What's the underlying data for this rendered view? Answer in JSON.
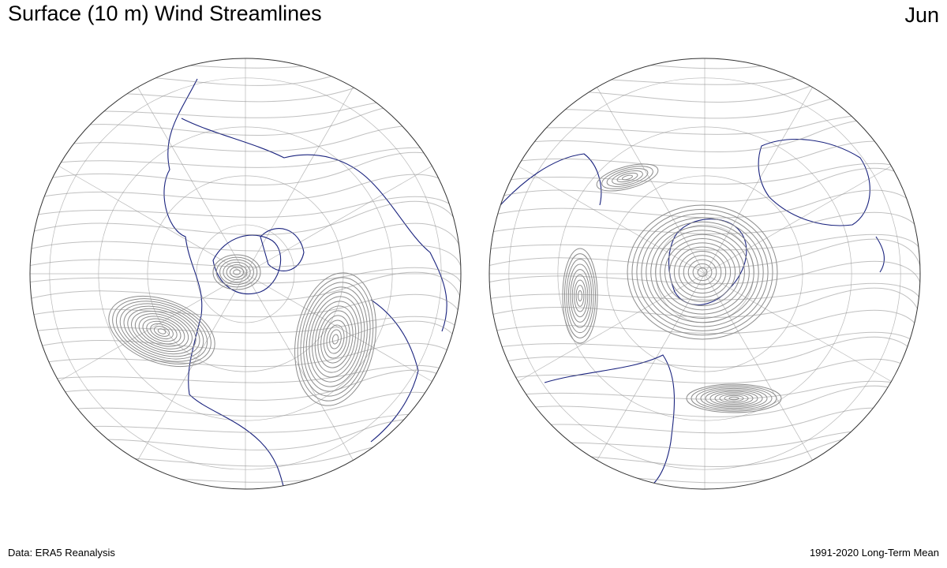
{
  "header": {
    "title": "Surface (10 m) Wind Streamlines",
    "month": "Jun"
  },
  "footer": {
    "source": "Data: ERA5 Reanalysis",
    "period": "1991-2020 Long-Term Mean"
  },
  "maps": [
    {
      "hemisphere": "northern",
      "projection": "polar stereographic"
    },
    {
      "hemisphere": "southern",
      "projection": "polar stereographic"
    }
  ],
  "colors": {
    "streamline": "#8c8c8c",
    "coastline": "#1a237e",
    "graticule": "#b8b8b8",
    "disk_outline": "#333333"
  }
}
